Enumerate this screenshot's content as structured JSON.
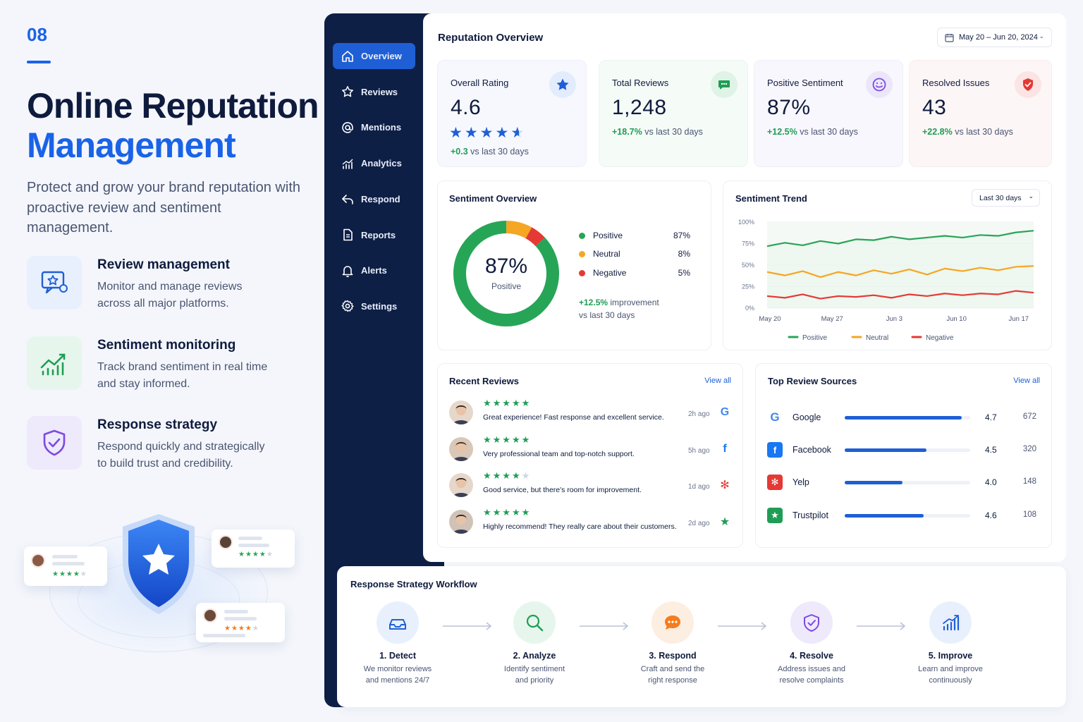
{
  "hero": {
    "number": "08",
    "title_line1": "Online Reputation",
    "title_line2": "Management",
    "lead": "Protect and grow your brand reputation with proactive review and sentiment management."
  },
  "features": [
    {
      "title": "Review management",
      "desc": "Monitor and manage reviews across all major platforms.",
      "icon": "review-chat-star-icon"
    },
    {
      "title": "Sentiment monitoring",
      "desc": "Track brand sentiment in real time and stay informed.",
      "icon": "trend-chart-icon"
    },
    {
      "title": "Response strategy",
      "desc": "Respond quickly and strategically to build trust and credibility.",
      "icon": "shield-check-icon"
    }
  ],
  "nav": [
    {
      "label": "Overview",
      "icon": "home-icon",
      "active": true
    },
    {
      "label": "Reviews",
      "icon": "star-icon"
    },
    {
      "label": "Mentions",
      "icon": "at-icon"
    },
    {
      "label": "Analytics",
      "icon": "analytics-icon"
    },
    {
      "label": "Respond",
      "icon": "reply-icon"
    },
    {
      "label": "Reports",
      "icon": "document-icon"
    },
    {
      "label": "Alerts",
      "icon": "bell-icon"
    },
    {
      "label": "Settings",
      "icon": "gear-icon"
    }
  ],
  "header": {
    "title": "Reputation Overview",
    "date_range": "May 20 – Jun 20, 2024"
  },
  "kpis": [
    {
      "label": "Overall Rating",
      "value": "4.6",
      "change": "+0.3",
      "change_suffix": " vs last 30 days",
      "rating": 4.6,
      "color": "#1f5fd6"
    },
    {
      "label": "Total Reviews",
      "value": "1,248",
      "change": "+18.7%",
      "change_suffix": " vs last 30 days",
      "color": "#1f9d55"
    },
    {
      "label": "Positive Sentiment",
      "value": "87%",
      "change": "+12.5%",
      "change_suffix": " vs last 30 days",
      "color": "#7b4ae2"
    },
    {
      "label": "Resolved Issues",
      "value": "43",
      "change": "+22.8%",
      "change_suffix": " vs last 30 days",
      "color": "#e53935"
    }
  ],
  "sentiment_overview": {
    "title": "Sentiment Overview",
    "center_value": "87%",
    "center_label": "Positive",
    "legend": [
      {
        "name": "Positive",
        "pct": "87%",
        "color": "#27a557"
      },
      {
        "name": "Neutral",
        "pct": "8%",
        "color": "#f5a623"
      },
      {
        "name": "Negative",
        "pct": "5%",
        "color": "#e53935"
      }
    ],
    "improvement": "+12.5%",
    "improvement_suffix": " improvement",
    "improvement_line2": "vs last 30 days"
  },
  "sentiment_trend": {
    "title": "Sentiment Trend",
    "range": "Last 30 days"
  },
  "chart_data": {
    "type": "line",
    "title": "Sentiment Trend",
    "y_ticks": [
      "100%",
      "75%",
      "50%",
      "25%",
      "0%"
    ],
    "x_ticks": [
      "May 20",
      "May 27",
      "Jun 3",
      "Jun 10",
      "Jun 17"
    ],
    "ylim": [
      0,
      100
    ],
    "x": [
      "May 20",
      "May 22",
      "May 24",
      "May 26",
      "May 28",
      "May 30",
      "Jun 1",
      "Jun 3",
      "Jun 5",
      "Jun 7",
      "Jun 9",
      "Jun 11",
      "Jun 13",
      "Jun 15",
      "Jun 17",
      "Jun 19"
    ],
    "series": [
      {
        "name": "Positive",
        "color": "#27a557",
        "values": [
          72,
          76,
          73,
          78,
          75,
          80,
          79,
          83,
          80,
          82,
          84,
          82,
          85,
          84,
          88,
          90
        ]
      },
      {
        "name": "Neutral",
        "color": "#f5a623",
        "values": [
          42,
          38,
          43,
          36,
          42,
          38,
          44,
          40,
          45,
          39,
          46,
          43,
          47,
          44,
          48,
          49
        ]
      },
      {
        "name": "Negative",
        "color": "#e53935",
        "values": [
          14,
          12,
          16,
          11,
          14,
          13,
          15,
          12,
          16,
          14,
          17,
          15,
          17,
          16,
          20,
          18
        ]
      }
    ],
    "legend": "bottom"
  },
  "recent_reviews": {
    "title": "Recent Reviews",
    "view_all": "View all",
    "items": [
      {
        "stars": "★★★★★",
        "text": "Great experience! Fast response and excellent service.",
        "time": "2h ago",
        "source": "G",
        "source_color": "#4285f4"
      },
      {
        "stars": "★★★★★",
        "text": "Very professional team and top-notch support.",
        "time": "5h ago",
        "source": "f",
        "source_color": "#1877f2"
      },
      {
        "stars": "★★★★☆",
        "text": "Good service, but there's room for improvement.",
        "time": "1d ago",
        "source": "✻",
        "source_color": "#e53935"
      },
      {
        "stars": "★★★★★",
        "text": "Highly recommend! They really care about their customers.",
        "time": "2d ago",
        "source": "★",
        "source_color": "#1f9d55"
      }
    ]
  },
  "top_sources": {
    "title": "Top Review Sources",
    "view_all": "View all",
    "items": [
      {
        "name": "Google",
        "rating": "4.7",
        "count": "672",
        "share": 0.93,
        "logo": "G",
        "color": "#ffffff"
      },
      {
        "name": "Facebook",
        "rating": "4.5",
        "count": "320",
        "share": 0.65,
        "logo": "f",
        "color": "#1877f2"
      },
      {
        "name": "Yelp",
        "rating": "4.0",
        "count": "148",
        "share": 0.46,
        "logo": "✻",
        "color": "#e53935"
      },
      {
        "name": "Trustpilot",
        "rating": "4.6",
        "count": "108",
        "share": 0.63,
        "logo": "★",
        "color": "#1f9d55"
      }
    ]
  },
  "workflow": {
    "title": "Response Strategy Workflow",
    "steps": [
      {
        "title": "1. Detect",
        "desc1": "We monitor reviews",
        "desc2": "and mentions 24/7",
        "color": "#1f5fd6",
        "bg": "#e8f0fd",
        "icon": "inbox-icon"
      },
      {
        "title": "2. Analyze",
        "desc1": "Identify sentiment",
        "desc2": "and priority",
        "color": "#1f9d55",
        "bg": "#e6f6ec",
        "icon": "search-icon"
      },
      {
        "title": "3. Respond",
        "desc1": "Craft and send the",
        "desc2": "right response",
        "color": "#f57c1f",
        "bg": "#fdeee2",
        "icon": "chat-icon"
      },
      {
        "title": "4. Resolve",
        "desc1": "Address issues and",
        "desc2": "resolve complaints",
        "color": "#7b4ae2",
        "bg": "#efe9fc",
        "icon": "shield-check-icon"
      },
      {
        "title": "5. Improve",
        "desc1": "Learn and improve",
        "desc2": "continuously",
        "color": "#1f5fd6",
        "bg": "#e8f0fd",
        "icon": "growth-icon"
      }
    ]
  }
}
